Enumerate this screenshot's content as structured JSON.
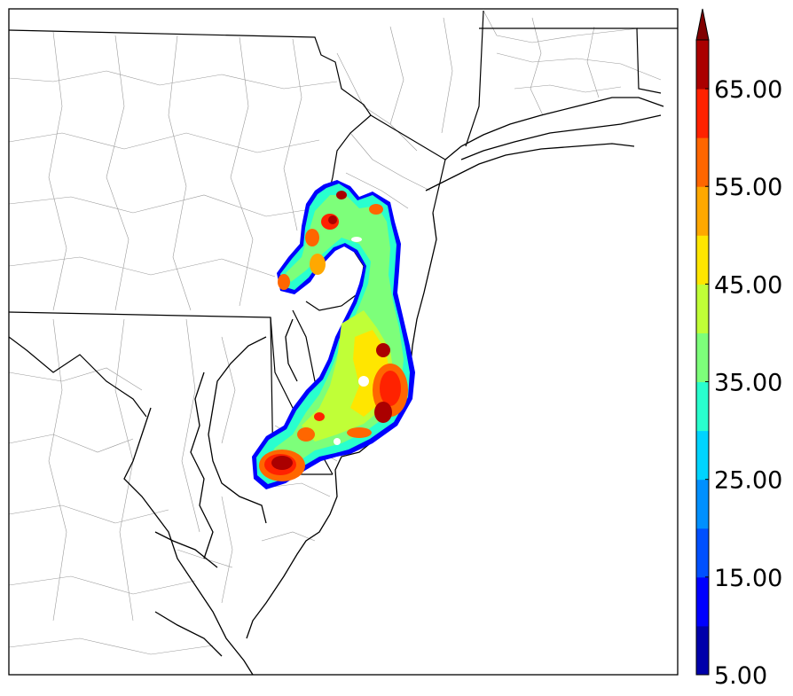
{
  "chart_data": {
    "type": "heatmap",
    "title": "",
    "colorbar": {
      "min": 5,
      "max": 70,
      "extend": "max",
      "tick_labels": [
        "5.00",
        "15.00",
        "25.00",
        "35.00",
        "45.00",
        "55.00",
        "65.00"
      ],
      "tick_values": [
        5,
        15,
        25,
        35,
        45,
        55,
        65
      ],
      "levels": [
        5,
        10,
        15,
        20,
        25,
        30,
        35,
        40,
        45,
        50,
        55,
        60,
        65,
        70
      ],
      "colors": [
        "#0000aa",
        "#0000ff",
        "#0050ff",
        "#0090ff",
        "#00d4ff",
        "#29ffce",
        "#7dff7a",
        "#c0ff37",
        "#ffe600",
        "#ffa800",
        "#ff6600",
        "#ff2200",
        "#aa0000"
      ],
      "over_color": "#800000"
    },
    "map_colors": {
      "state_border": "#000000",
      "county_border": "#9a9a9a",
      "coastline": "#000000"
    }
  }
}
